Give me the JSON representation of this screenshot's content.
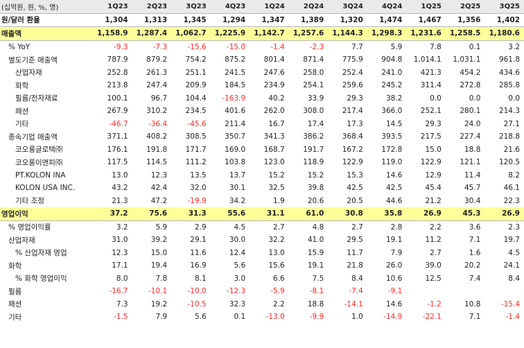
{
  "colors": {
    "highlight": "#ffff9a",
    "header": "#eaeaea",
    "negative": "#ff2a2a"
  },
  "header": {
    "label": "(십억원, 원, %, 명)",
    "quarters": [
      "1Q23",
      "2Q23",
      "3Q23",
      "4Q23",
      "1Q24",
      "2Q24",
      "3Q24",
      "4Q24",
      "1Q25",
      "2Q25",
      "3Q25"
    ]
  },
  "rows": [
    {
      "label": "원/달러 환율",
      "indent": 0,
      "style": "fx",
      "values": [
        "1,304",
        "1,313",
        "1,345",
        "1,294",
        "1,347",
        "1,389",
        "1,320",
        "1,474",
        "1,467",
        "1,356",
        "1,402"
      ]
    },
    {
      "label": "매출액",
      "indent": 0,
      "style": "highlight",
      "values": [
        "1,158.9",
        "1,287.4",
        "1,062.7",
        "1,225.9",
        "1,142.7",
        "1,257.6",
        "1,144.3",
        "1,298.3",
        "1,231.6",
        "1,258.5",
        "1,180.6"
      ]
    },
    {
      "label": "% YoY",
      "indent": 2,
      "values": [
        "-9.3",
        "-7.3",
        "-15.6",
        "-15.0",
        "-1.4",
        "-2.3",
        "7.7",
        "5.9",
        "7.8",
        "0.1",
        "3.2"
      ]
    },
    {
      "label": "별도기준 매출액",
      "indent": 2,
      "values": [
        "787.9",
        "879.2",
        "754.2",
        "875.2",
        "801.4",
        "871.4",
        "775.9",
        "904.8",
        "1,014.1",
        "1,031.1",
        "961.8"
      ]
    },
    {
      "label": "산업자재",
      "indent": 4,
      "values": [
        "252.8",
        "261.3",
        "251.1",
        "241.5",
        "247.6",
        "258.0",
        "252.4",
        "241.0",
        "421.3",
        "454.2",
        "434.6"
      ]
    },
    {
      "label": "화학",
      "indent": 4,
      "values": [
        "213.8",
        "247.4",
        "209.9",
        "184.5",
        "234.9",
        "254.1",
        "259.6",
        "245.2",
        "311.4",
        "272.8",
        "285.8"
      ]
    },
    {
      "label": "필름/전자재료",
      "indent": 4,
      "values": [
        "100.1",
        "96.7",
        "104.4",
        "-163.9",
        "40.2",
        "33.9",
        "29.3",
        "38.2",
        "0.0",
        "0.0",
        "0.0"
      ]
    },
    {
      "label": "패션",
      "indent": 4,
      "values": [
        "267.9",
        "310.2",
        "234.5",
        "401.6",
        "262.0",
        "308.0",
        "217.4",
        "366.0",
        "252.1",
        "280.1",
        "214.3"
      ]
    },
    {
      "label": "기타",
      "indent": 4,
      "values": [
        "-46.7",
        "-36.4",
        "-45.6",
        "211.4",
        "16.7",
        "17.4",
        "17.3",
        "14.5",
        "29.3",
        "24.0",
        "27.1"
      ]
    },
    {
      "label": "종속기업 매출액",
      "indent": 2,
      "values": [
        "371.1",
        "408.2",
        "308.5",
        "350.7",
        "341.3",
        "386.2",
        "368.4",
        "393.5",
        "217.5",
        "227.4",
        "218.8"
      ]
    },
    {
      "label": "코오롱글로텍㈜",
      "indent": 4,
      "values": [
        "176.1",
        "191.8",
        "171.7",
        "169.0",
        "168.7",
        "191.7",
        "167.2",
        "172.8",
        "15.0",
        "18.8",
        "21.6"
      ]
    },
    {
      "label": "코오롱이앤피㈜",
      "indent": 4,
      "values": [
        "117.5",
        "114.5",
        "111.2",
        "103.8",
        "123.0",
        "118.9",
        "122.9",
        "119.0",
        "122.9",
        "121.1",
        "120.5"
      ]
    },
    {
      "label": "PT.KOLON INA",
      "indent": 4,
      "values": [
        "13.0",
        "12.3",
        "13.5",
        "13.7",
        "15.2",
        "15.2",
        "15.3",
        "14.6",
        "12.9",
        "11.4",
        "8.2"
      ]
    },
    {
      "label": "KOLON USA INC.",
      "indent": 4,
      "values": [
        "43.2",
        "42.4",
        "32.0",
        "30.1",
        "32.5",
        "39.8",
        "42.5",
        "42.5",
        "45.4",
        "45.7",
        "46.1"
      ]
    },
    {
      "label": "기타 조정",
      "indent": 4,
      "values": [
        "21.3",
        "47.2",
        "-19.9",
        "34.2",
        "1.9",
        "20.6",
        "20.5",
        "44.6",
        "21.2",
        "30.4",
        "22.3"
      ]
    },
    {
      "label": "영업이익",
      "indent": 0,
      "style": "highlight",
      "values": [
        "37.2",
        "75.6",
        "31.3",
        "55.6",
        "31.1",
        "61.0",
        "30.8",
        "35.8",
        "26.9",
        "45.3",
        "26.9"
      ]
    },
    {
      "label": "% 영업이익률",
      "indent": 2,
      "values": [
        "3.2",
        "5.9",
        "2.9",
        "4.5",
        "2.7",
        "4.8",
        "2.7",
        "2.8",
        "2.2",
        "3.6",
        "2.3"
      ]
    },
    {
      "label": "산업자재",
      "indent": 2,
      "values": [
        "31.0",
        "39.2",
        "29.1",
        "30.0",
        "32.2",
        "41.0",
        "29.5",
        "19.1",
        "11.2",
        "7.1",
        "19.7"
      ]
    },
    {
      "label": "% 산업자재 영업",
      "indent": 4,
      "values": [
        "12.3",
        "15.0",
        "11.6",
        "12.4",
        "13.0",
        "15.9",
        "11.7",
        "7.9",
        "2.7",
        "1.6",
        "4.5"
      ]
    },
    {
      "label": "화학",
      "indent": 2,
      "values": [
        "17.1",
        "19.4",
        "16.9",
        "5.6",
        "15.6",
        "19.1",
        "21.8",
        "26.0",
        "39.0",
        "20.2",
        "24.1"
      ]
    },
    {
      "label": "% 화학 영업이익",
      "indent": 4,
      "values": [
        "8.0",
        "7.8",
        "8.1",
        "3.0",
        "6.6",
        "7.5",
        "8.4",
        "10.6",
        "12.5",
        "7.4",
        "8.4"
      ]
    },
    {
      "label": "필름",
      "indent": 2,
      "values": [
        "-16.7",
        "-10.1",
        "-10.0",
        "-12.3",
        "-5.9",
        "-8.1",
        "-7.4",
        "-9.1",
        "",
        "",
        ""
      ]
    },
    {
      "label": "패션",
      "indent": 2,
      "values": [
        "7.3",
        "19.2",
        "-10.5",
        "32.3",
        "2.2",
        "18.8",
        "-14.1",
        "14.6",
        "-1.2",
        "10.8",
        "-15.4"
      ]
    },
    {
      "label": "기타",
      "indent": 2,
      "values": [
        "-1.5",
        "7.9",
        "5.6",
        "0.1",
        "-13.0",
        "-9.9",
        "1.0",
        "-14.9",
        "-22.1",
        "7.1",
        "-1.4"
      ]
    }
  ]
}
